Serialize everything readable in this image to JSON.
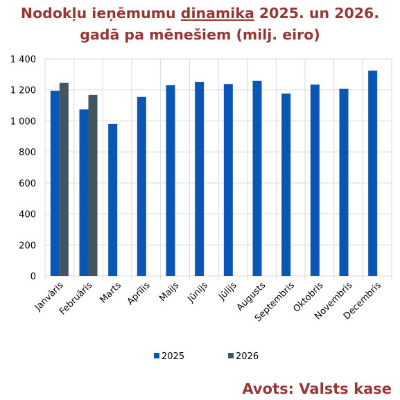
{
  "title": {
    "part1": "Nodokļu ieņēmumu ",
    "underlined": "dinamika",
    "part2": " 2025. un 2026.",
    "line2": "gadā pa mēnešiem (milj. eiro)"
  },
  "source": "Avots: Valsts kase",
  "colors": {
    "series_2025": "#0a56b5",
    "series_2026": "#435461",
    "title": "#953735",
    "grid": "#d9d9d9"
  },
  "chart_data": {
    "type": "bar",
    "categories": [
      "Janvāris",
      "Februāris",
      "Marts",
      "Aprīlis",
      "Maijs",
      "Jūnijs",
      "Jūlijs",
      "Augusts",
      "Septembris",
      "Oktobris",
      "Novembris",
      "Decembris"
    ],
    "series": [
      {
        "name": "2025",
        "values": [
          1195,
          1075,
          980,
          1155,
          1230,
          1252,
          1238,
          1258,
          1177,
          1235,
          1208,
          1325
        ]
      },
      {
        "name": "2026",
        "values": [
          1245,
          1168,
          null,
          null,
          null,
          null,
          null,
          null,
          null,
          null,
          null,
          null
        ]
      }
    ],
    "yticks": [
      "0",
      "200",
      "400",
      "600",
      "800",
      "1 000",
      "1 200",
      "1 400"
    ],
    "ylim": [
      0,
      1400
    ],
    "grid": true,
    "legend": "bottom"
  }
}
